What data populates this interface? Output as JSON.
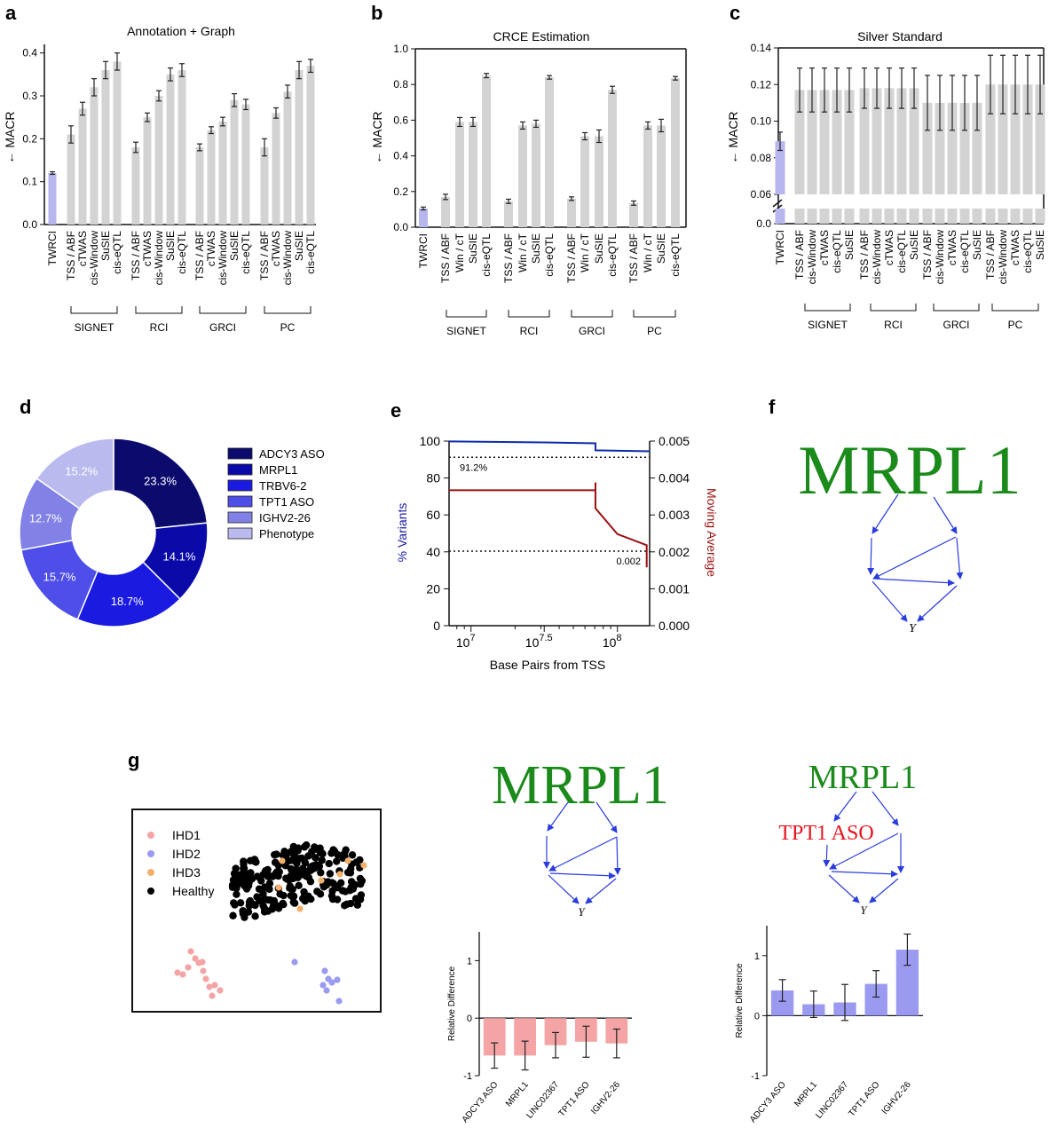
{
  "panels": {
    "a": "a",
    "b": "b",
    "c": "c",
    "d": "d",
    "e": "e",
    "f": "f",
    "g": "g"
  },
  "colors": {
    "twrci": "#b7b6ee",
    "bar": "#d3d3d3",
    "err": "#222222",
    "donut": [
      "#0b0b6e",
      "#0a0aa8",
      "#1a1ae0",
      "#4e4ee8",
      "#8181e6",
      "#babaee"
    ],
    "blue_line": "#0c2aa8",
    "red_line": "#991010",
    "mrpl": "#1a8a1a",
    "arrow": "#2a3cdc",
    "tpt1": "#e8141e",
    "pink": "#f4a4a4",
    "purple": "#9a9af0",
    "orange": "#f4b06a"
  },
  "chart_data": [
    {
      "id": "a",
      "type": "bar",
      "title": "Annotation + Graph",
      "ylabel": "← MACR",
      "ylim": [
        0,
        0.42
      ],
      "yticks": [
        "0.0",
        "0.1",
        "0.2",
        "0.3",
        "0.4"
      ],
      "ytick_values": [
        0,
        0.1,
        0.2,
        0.3,
        0.4
      ],
      "categories": [
        "TWRCI",
        "TSS / ABF",
        "cTWAS",
        "cis-Window",
        "SuSIE",
        "cis-eQTL",
        "TSS / ABF",
        "cTWAS",
        "cis-Window",
        "SuSIE",
        "cis-eQTL",
        "TSS / ABF",
        "cTWAS",
        "cis-Window",
        "SuSIE",
        "cis-eQTL",
        "TSS / ABF",
        "cTWAS",
        "cis-Window",
        "SuSIE",
        "cis-eQTL"
      ],
      "values": [
        0.12,
        0.21,
        0.27,
        0.32,
        0.36,
        0.38,
        0.18,
        0.25,
        0.3,
        0.35,
        0.36,
        0.18,
        0.22,
        0.24,
        0.29,
        0.28,
        0.18,
        0.26,
        0.31,
        0.36,
        0.37
      ],
      "errors": [
        0.003,
        0.02,
        0.015,
        0.02,
        0.02,
        0.02,
        0.012,
        0.01,
        0.012,
        0.015,
        0.015,
        0.008,
        0.008,
        0.01,
        0.015,
        0.012,
        0.02,
        0.012,
        0.015,
        0.02,
        0.015
      ],
      "groups": [
        "SIGNET",
        "RCI",
        "GRCI",
        "PC"
      ]
    },
    {
      "id": "b",
      "type": "bar",
      "title": "CRCE Estimation",
      "ylabel": "← MACR",
      "ylim": [
        0,
        1.0
      ],
      "yticks": [
        "0.0",
        "0.2",
        "0.4",
        "0.6",
        "0.8",
        "1.0"
      ],
      "ytick_values": [
        0,
        0.2,
        0.4,
        0.6,
        0.8,
        1.0
      ],
      "categories": [
        "TWRCI",
        "TSS / ABF",
        "Win / cT",
        "SuSIE",
        "cis-eQTL",
        "TSS / ABF",
        "Win / cT",
        "SuSIE",
        "cis-eQTL",
        "TSS / ABF",
        "Win / cT",
        "SuSIE",
        "cis-eQTL",
        "TSS / ABF",
        "Win / cT",
        "SuSIE",
        "cis-eQTL"
      ],
      "values": [
        0.105,
        0.17,
        0.59,
        0.59,
        0.85,
        0.145,
        0.57,
        0.58,
        0.84,
        0.16,
        0.51,
        0.51,
        0.77,
        0.135,
        0.57,
        0.57,
        0.835
      ],
      "errors": [
        0.008,
        0.015,
        0.025,
        0.025,
        0.012,
        0.012,
        0.02,
        0.02,
        0.01,
        0.01,
        0.02,
        0.035,
        0.02,
        0.012,
        0.02,
        0.035,
        0.01
      ],
      "groups": [
        "SIGNET",
        "RCI",
        "GRCI",
        "PC"
      ]
    },
    {
      "id": "c",
      "type": "bar",
      "title": "Silver Standard",
      "ylabel": "← MACR",
      "ylim": [
        0.06,
        0.14
      ],
      "axis_break": true,
      "yticks": [
        "0.0",
        "0.06",
        "0.08",
        "0.10",
        "0.12",
        "0.14"
      ],
      "categories": [
        "TWRCI",
        "TSS / ABF",
        "cis-Window",
        "cTWAS",
        "cis-eQTL",
        "SuSIE",
        "TSS / ABF",
        "cis-Window",
        "cTWAS",
        "cis-eQTL",
        "SuSIE",
        "TSS / ABF",
        "cis-Window",
        "cTWAS",
        "cis-eQTL",
        "SuSIE",
        "TSS / ABF",
        "cis-Window",
        "cTWAS",
        "cis-eQTL",
        "SuSIE"
      ],
      "values": [
        0.089,
        0.117,
        0.117,
        0.117,
        0.117,
        0.117,
        0.118,
        0.118,
        0.118,
        0.118,
        0.118,
        0.11,
        0.11,
        0.11,
        0.11,
        0.11,
        0.12,
        0.12,
        0.12,
        0.12,
        0.12
      ],
      "errors": [
        0.005,
        0.012,
        0.012,
        0.012,
        0.012,
        0.012,
        0.011,
        0.011,
        0.011,
        0.011,
        0.011,
        0.015,
        0.015,
        0.015,
        0.015,
        0.015,
        0.016,
        0.016,
        0.016,
        0.016,
        0.016
      ],
      "groups": [
        "SIGNET",
        "RCI",
        "GRCI",
        "PC"
      ]
    },
    {
      "id": "d",
      "type": "pie",
      "subtype": "donut",
      "labels": [
        "ADCY3 ASO",
        "MRPL1",
        "TRBV6-2",
        "TPT1 ASO",
        "IGHV2-26",
        "Phenotype"
      ],
      "values": [
        23.3,
        14.1,
        18.7,
        15.7,
        12.7,
        15.2
      ],
      "value_labels": [
        "23.3%",
        "14.1%",
        "18.7%",
        "15.7%",
        "12.7%",
        "15.2%"
      ],
      "legend": "right"
    },
    {
      "id": "e",
      "type": "line",
      "xlabel": "Base Pairs from TSS",
      "ylabel": "% Variants",
      "y2label": "Moving Average",
      "xscale": "log",
      "xlim": [
        6.85,
        8.22
      ],
      "xticks": [
        "10^7",
        "10^7.5",
        "10^8"
      ],
      "xtick_values": [
        7,
        7.5,
        8
      ],
      "ylim": [
        0,
        100
      ],
      "yticks": [
        "0",
        "20",
        "40",
        "60",
        "80",
        "100"
      ],
      "y2lim": [
        0,
        0.005
      ],
      "y2ticks": [
        "0.000",
        "0.001",
        "0.002",
        "0.003",
        "0.004",
        "0.005"
      ],
      "series": [
        {
          "axis": "left",
          "log10_x": [
            6.85,
            7.0,
            7.5,
            7.85,
            7.85,
            8.22
          ],
          "y": [
            99.8,
            99.7,
            99.3,
            98.8,
            95.0,
            94.5
          ]
        },
        {
          "axis": "right",
          "log10_x": [
            6.85,
            7.5,
            7.85,
            7.85,
            8.0,
            8.2,
            8.2
          ],
          "y": [
            0.00367,
            0.00367,
            0.00367,
            0.00318,
            0.00248,
            0.00218,
            0.00158
          ],
          "vtick_log10x": 7.85,
          "vtick_y": [
            0.00367,
            0.00388
          ]
        }
      ],
      "hlines": [
        {
          "axis": "left",
          "y": 91.2,
          "label": "91.2%"
        },
        {
          "axis": "right",
          "y": 0.00202,
          "label": "0.002"
        }
      ]
    },
    {
      "id": "g_scatter",
      "type": "scatter",
      "legend": [
        "IHD1",
        "IHD2",
        "IHD3",
        "Healthy"
      ],
      "legend_placement": "top-left"
    },
    {
      "id": "g1",
      "type": "bar",
      "ylabel": "Relative Difference",
      "ylim": [
        -1,
        1.5
      ],
      "yticks": [
        "-1",
        "0",
        "1"
      ],
      "ytick_values": [
        -1,
        0,
        1
      ],
      "categories": [
        "ADCY3 ASO",
        "MRPL1",
        "LINC02367",
        "TPT1 ASO",
        "IGHV2-26"
      ],
      "values": [
        -0.65,
        -0.65,
        -0.47,
        -0.41,
        -0.44
      ],
      "errors": [
        0.22,
        0.25,
        0.22,
        0.27,
        0.25
      ]
    },
    {
      "id": "g2",
      "type": "bar",
      "ylabel": "Relative Difference",
      "ylim": [
        -1,
        1.5
      ],
      "yticks": [
        "-1",
        "0",
        "1"
      ],
      "ytick_values": [
        -1,
        0,
        1
      ],
      "categories": [
        "ADCY3 ASO",
        "MRPL1",
        "LINC02367",
        "TPT1 ASO",
        "IGHV2-26"
      ],
      "values": [
        0.42,
        0.19,
        0.22,
        0.53,
        1.1
      ],
      "errors": [
        0.18,
        0.22,
        0.3,
        0.22,
        0.26
      ]
    }
  ],
  "graph_f": {
    "title": "MRPL1",
    "outcome": "Y"
  },
  "graph_g1": {
    "title": "MRPL1",
    "outcome": "Y"
  },
  "graph_g2": {
    "title": "MRPL1",
    "red_label": "TPT1 ASO",
    "outcome": "Y"
  }
}
